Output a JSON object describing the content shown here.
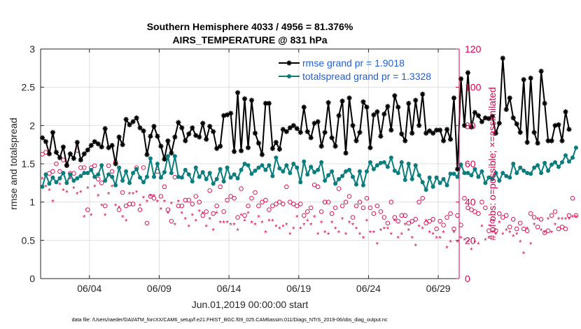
{
  "chart_data": {
    "type": "line",
    "title_line1": "Southern Hemisphere 4033 / 4956 = 81.376%",
    "title_line2": "AIRS_TEMPERATURE @ 831 hPa",
    "xlabel": "Jun.01,2019 00:00:00 start",
    "ylabel_left": "rmse and totalspread",
    "ylabel_right": "# of obs: o=possible; ×=assimilated",
    "footer": "data file: /Users/raeder/DAI/ATM_forcXX/CAM6_setup/f.e21.FHIST_BGC.f09_025.CAM6assim.011/Diags_NTrS_2019-06/obs_diag_output.nc",
    "x_domain": [
      0.5,
      30.5
    ],
    "ylim_left": [
      0,
      3
    ],
    "ylim_right": [
      0,
      120
    ],
    "yticks_left": [
      "0",
      "0.5",
      "1",
      "1.5",
      "2",
      "2.5",
      "3"
    ],
    "yticks_right": [
      "0",
      "20",
      "40",
      "60",
      "80",
      "100",
      "120"
    ],
    "xticks": [
      {
        "x": 4,
        "label": "06/04"
      },
      {
        "x": 9,
        "label": "06/09"
      },
      {
        "x": 14,
        "label": "06/14"
      },
      {
        "x": 19,
        "label": "06/19"
      },
      {
        "x": 24,
        "label": "06/24"
      },
      {
        "x": 29,
        "label": "06/29"
      }
    ],
    "x_start": 0.625,
    "x_step": 0.25,
    "legend": [
      {
        "label": "rmse grand pr = 1.9018",
        "color": "#000000"
      },
      {
        "label": "totalspread grand pr = 1.3328",
        "color": "#0b7d7d"
      }
    ],
    "colors": {
      "rmse": "#000000",
      "spread": "#0b7d7d",
      "obs": "#d6004f",
      "axis": "#262626",
      "grid": "#dfdfdf"
    },
    "series": [
      {
        "name": "rmse",
        "values": [
          1.84,
          1.79,
          1.63,
          1.91,
          1.65,
          1.58,
          1.72,
          1.48,
          1.63,
          1.57,
          1.78,
          1.55,
          1.63,
          1.68,
          1.74,
          1.79,
          1.76,
          1.72,
          1.96,
          1.71,
          1.74,
          1.5,
          1.85,
          1.75,
          2.08,
          2.01,
          2.05,
          2.1,
          1.97,
          1.93,
          1.62,
          1.86,
          1.99,
          1.86,
          1.73,
          1.56,
          1.8,
          1.64,
          1.85,
          2.04,
          1.97,
          1.8,
          1.89,
          1.97,
          1.87,
          1.85,
          2.03,
          1.82,
          1.99,
          1.92,
          1.7,
          1.73,
          2.13,
          2.14,
          2.16,
          1.66,
          2.43,
          1.67,
          2.35,
          1.71,
          2.33,
          1.9,
          1.77,
          1.62,
          2.29,
          2.29,
          1.7,
          1.78,
          1.69,
          1.95,
          1.92,
          1.97,
          2.0,
          1.96,
          1.91,
          2.24,
          1.92,
          1.84,
          2.03,
          2.05,
          1.73,
          1.91,
          2.3,
          1.84,
          1.73,
          2.13,
          2.32,
          1.64,
          2.36,
          2.0,
          1.8,
          1.91,
          2.31,
          2.24,
          1.71,
          2.14,
          2.18,
          1.86,
          2.15,
          2.25,
          1.94,
          2.39,
          2.24,
          1.89,
          1.8,
          2.29,
          1.9,
          2.33,
          2.0,
          2.41,
          1.9,
          1.93,
          1.9,
          1.94,
          1.94,
          1.8,
          1.95,
          1.82,
          2.36,
          1.43,
          2.61,
          2.0,
          2.69,
          1.98,
          2.17,
          2.13,
          2.05,
          2.1,
          2.09,
          2.12,
          1.9,
          2.03,
          2.88,
          2.21,
          2.36,
          2.1,
          2.02,
          1.91,
          2.6,
          1.78,
          2.62,
          1.91,
          1.77,
          2.71,
          2.29,
          1.8,
          1.8,
          2.0,
          2.01,
          1.8,
          2.18,
          1.95
        ]
      },
      {
        "name": "totalspread",
        "values": [
          1.2,
          1.36,
          1.24,
          1.32,
          1.26,
          1.31,
          1.38,
          1.25,
          1.36,
          1.28,
          1.31,
          1.34,
          1.38,
          1.38,
          1.42,
          1.33,
          1.36,
          1.48,
          1.28,
          1.36,
          1.33,
          1.22,
          1.45,
          1.28,
          1.4,
          1.25,
          1.38,
          1.43,
          1.32,
          1.26,
          1.33,
          1.57,
          1.33,
          1.5,
          1.32,
          1.39,
          1.6,
          1.38,
          1.6,
          1.33,
          1.32,
          1.42,
          1.36,
          1.27,
          1.45,
          1.33,
          1.39,
          1.3,
          1.38,
          1.24,
          1.3,
          1.43,
          1.27,
          1.45,
          1.32,
          1.36,
          1.31,
          1.42,
          1.5,
          1.48,
          1.37,
          1.41,
          1.45,
          1.48,
          1.42,
          1.48,
          1.34,
          1.58,
          1.44,
          1.4,
          1.48,
          1.38,
          1.5,
          1.45,
          1.26,
          1.53,
          1.36,
          1.46,
          1.39,
          1.42,
          1.52,
          1.28,
          1.35,
          1.4,
          1.24,
          1.3,
          1.34,
          1.4,
          1.42,
          1.33,
          1.23,
          1.4,
          1.22,
          1.4,
          1.52,
          1.43,
          1.48,
          1.51,
          1.52,
          1.46,
          1.58,
          1.41,
          1.38,
          1.52,
          1.29,
          1.5,
          1.3,
          1.48,
          1.35,
          1.26,
          1.16,
          1.32,
          1.2,
          1.32,
          1.25,
          1.3,
          1.22,
          1.37,
          1.37,
          1.33,
          1.49,
          1.38,
          1.38,
          1.35,
          1.43,
          1.33,
          1.4,
          1.25,
          1.32,
          1.3,
          1.38,
          1.28,
          1.38,
          1.34,
          1.32,
          1.5,
          1.38,
          1.45,
          1.41,
          1.38,
          1.37,
          1.45,
          1.48,
          1.38,
          1.51,
          1.41,
          1.49,
          1.52,
          1.46,
          1.52,
          1.61,
          1.53,
          1.58,
          1.71
        ]
      },
      {
        "name": "possible_obs",
        "axis": "right",
        "values": [
          65,
          66,
          55,
          56,
          60,
          56,
          62,
          59,
          55,
          55,
          67,
          58,
          58,
          36,
          58,
          59,
          52,
          50,
          38,
          59,
          56,
          61,
          36,
          45,
          38,
          39,
          39,
          58,
          36,
          58,
          29,
          43,
          42,
          56,
          43,
          48,
          36,
          30,
          53,
          38,
          38,
          41,
          41,
          39,
          43,
          40,
          33,
          35,
          46,
          34,
          38,
          48,
          35,
          41,
          43,
          42,
          32,
          47,
          33,
          38,
          42,
          45,
          38,
          40,
          41,
          36,
          38,
          39,
          40,
          39,
          48,
          40,
          39,
          38,
          39,
          33,
          35,
          37,
          49,
          48,
          35,
          40,
          40,
          34,
          37,
          47,
          38,
          40,
          43,
          32,
          38,
          40,
          37,
          42,
          37,
          34,
          38,
          35,
          32,
          29,
          40,
          32,
          30,
          33,
          33,
          29,
          30,
          31,
          40,
          42,
          29,
          30,
          31,
          26,
          30,
          28,
          32,
          34,
          26,
          33,
          28,
          42,
          37,
          36,
          35,
          34,
          40,
          37,
          25,
          30,
          25,
          34,
          32,
          33,
          27,
          31,
          26,
          29,
          26,
          25,
          34,
          32,
          27,
          31,
          24,
          25,
          33,
          35,
          26,
          27,
          26,
          33,
          42,
          33
        ]
      },
      {
        "name": "assimilated_obs",
        "axis": "right",
        "values": [
          52,
          48,
          46,
          40,
          50,
          49,
          46,
          45,
          52,
          47,
          44,
          45,
          32,
          47,
          33,
          48,
          43,
          38,
          33,
          44,
          48,
          38,
          37,
          32,
          30,
          44,
          44,
          45,
          38,
          42,
          40,
          43,
          43,
          40,
          36,
          40,
          34,
          39,
          28,
          40,
          34,
          31,
          27,
          33,
          30,
          35,
          34,
          27,
          31,
          25,
          34,
          29,
          29,
          29,
          28,
          28,
          25,
          33,
          30,
          34,
          29,
          28,
          32,
          29,
          24,
          30,
          30,
          27,
          26,
          27,
          28,
          23,
          26,
          32,
          26,
          28,
          30,
          28,
          32,
          23,
          29,
          24,
          23,
          29,
          26,
          24,
          31,
          23,
          29,
          28,
          26,
          23,
          21,
          30,
          24,
          24,
          18,
          25,
          26,
          26,
          23,
          30,
          21,
          23,
          28,
          25,
          21,
          17,
          27,
          26,
          30,
          24,
          23,
          21,
          21,
          24,
          16,
          19,
          24,
          19,
          21,
          20,
          19,
          15,
          19,
          18,
          27,
          20,
          21,
          24,
          23,
          29,
          23,
          25,
          24,
          22,
          23,
          19,
          13,
          26,
          18,
          28,
          31,
          25,
          24,
          31,
          24,
          28,
          31,
          31,
          31,
          31,
          32,
          32
        ]
      }
    ]
  }
}
